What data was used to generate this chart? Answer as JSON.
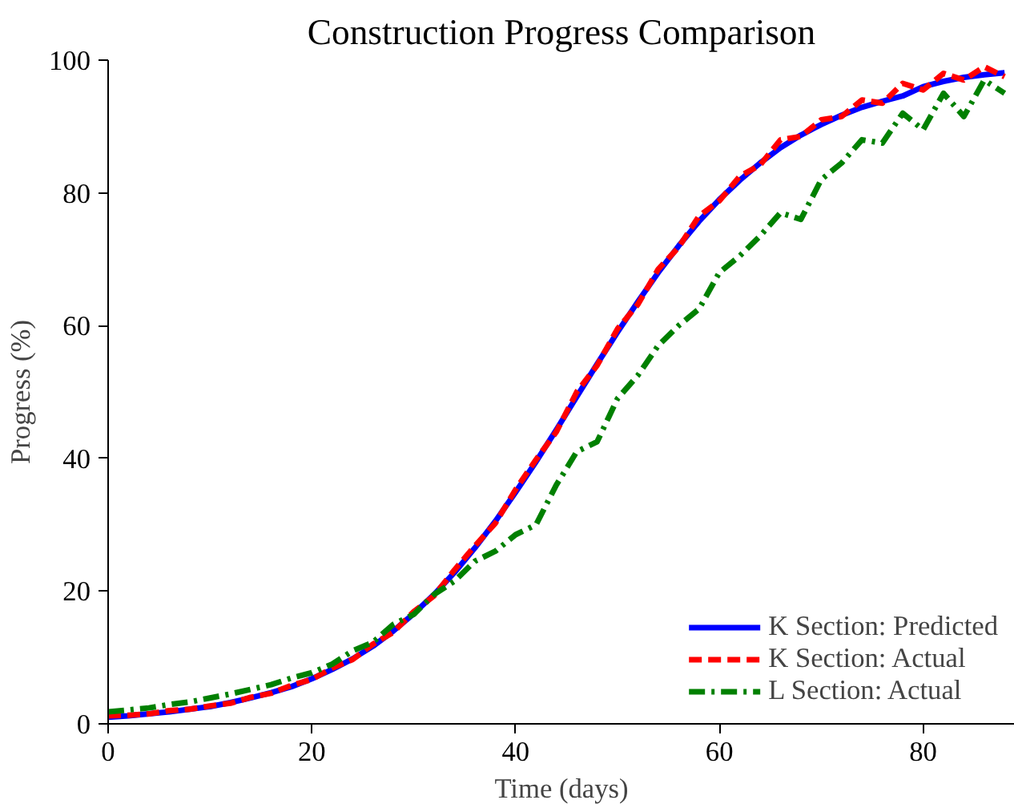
{
  "chart_data": {
    "type": "line",
    "title": "Construction Progress Comparison",
    "xlabel": "Time (days)",
    "ylabel": "Progress (%)",
    "x": [
      0,
      2,
      4,
      6,
      8,
      10,
      12,
      14,
      16,
      18,
      20,
      22,
      24,
      26,
      28,
      30,
      32,
      34,
      36,
      38,
      40,
      42,
      44,
      46,
      48,
      50,
      52,
      54,
      56,
      58,
      60,
      62,
      64,
      66,
      68,
      70,
      72,
      74,
      76,
      78,
      80,
      82,
      84,
      86,
      88
    ],
    "series": [
      {
        "name": "K Section: Predicted",
        "color": "#0000ff",
        "line_style": "solid",
        "values": [
          1.0,
          1.2,
          1.5,
          1.8,
          2.2,
          2.6,
          3.2,
          3.9,
          4.7,
          5.6,
          6.8,
          8.2,
          9.8,
          11.7,
          14.0,
          16.6,
          19.5,
          22.8,
          26.5,
          30.5,
          34.9,
          39.5,
          44.3,
          49.3,
          54.2,
          59.0,
          63.6,
          68.0,
          72.0,
          75.7,
          79.0,
          81.9,
          84.5,
          86.8,
          88.7,
          90.3,
          91.7,
          92.9,
          93.8,
          94.6,
          96.0,
          96.8,
          97.4,
          97.8,
          98.1
        ]
      },
      {
        "name": "K Section: Actual",
        "color": "#ff0000",
        "line_style": "dashed",
        "values": [
          1.2,
          1.3,
          1.5,
          2.0,
          2.2,
          2.7,
          3.1,
          4.0,
          4.6,
          5.8,
          6.7,
          8.4,
          9.7,
          12.0,
          13.8,
          16.9,
          19.3,
          23.2,
          26.8,
          30.2,
          35.3,
          39.8,
          44.0,
          50.0,
          54.0,
          59.5,
          63.2,
          68.5,
          71.8,
          76.5,
          78.8,
          82.5,
          84.2,
          88.0,
          88.5,
          91.0,
          91.5,
          94.0,
          93.5,
          96.5,
          95.5,
          98.0,
          97.0,
          99.0,
          97.5
        ]
      },
      {
        "name": "L Section: Actual",
        "color": "#008000",
        "line_style": "dashdot",
        "values": [
          1.8,
          2.1,
          2.4,
          2.9,
          3.3,
          3.9,
          4.5,
          5.2,
          5.9,
          6.9,
          7.7,
          9.0,
          11.0,
          12.3,
          15.0,
          16.5,
          19.5,
          21.5,
          24.5,
          26.0,
          28.5,
          30.0,
          36.0,
          41.0,
          42.5,
          49.0,
          52.5,
          57.0,
          60.0,
          62.5,
          68.0,
          70.5,
          73.5,
          77.0,
          76.0,
          82.0,
          84.5,
          88.0,
          87.5,
          92.0,
          89.5,
          95.0,
          91.5,
          97.0,
          95.0
        ]
      }
    ],
    "xlim": [
      0,
      89
    ],
    "ylim": [
      0,
      100
    ],
    "xticks": [
      0,
      20,
      40,
      60,
      80
    ],
    "yticks": [
      0,
      20,
      40,
      60,
      80,
      100
    ],
    "grid": false,
    "legend": "bottom right"
  }
}
